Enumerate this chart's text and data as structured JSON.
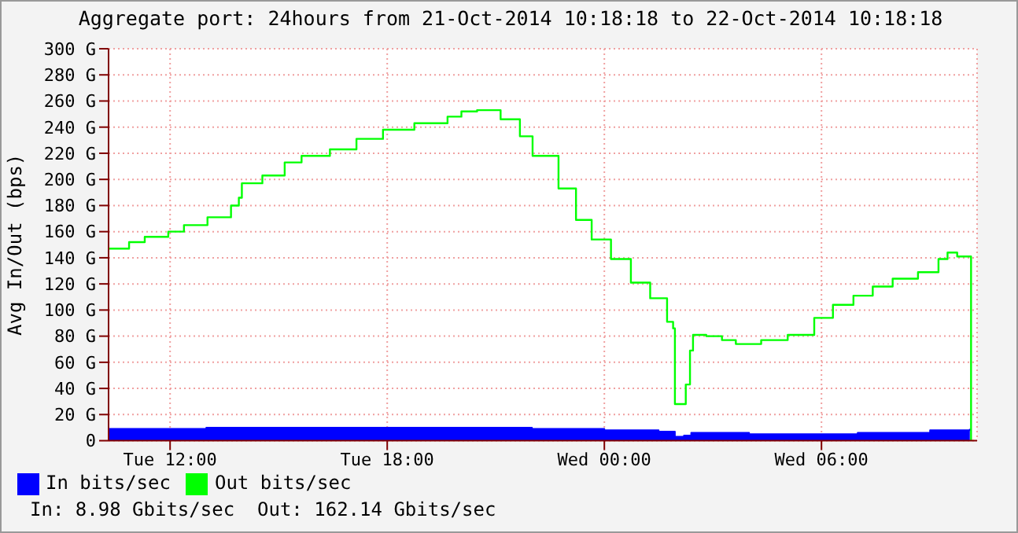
{
  "chart_data": {
    "type": "step",
    "title": "Aggregate port: 24hours from 21-Oct-2014 10:18:18 to 22-Oct-2014 10:18:18",
    "ylabel": "Avg In/Out (bps)",
    "xlim": [
      "2014-10-21T10:18",
      "2014-10-22T10:18"
    ],
    "xticks": [
      {
        "value": "2014-10-21T12:00",
        "label": "Tue 12:00"
      },
      {
        "value": "2014-10-21T18:00",
        "label": "Tue 18:00"
      },
      {
        "value": "2014-10-22T00:00",
        "label": "Wed 00:00"
      },
      {
        "value": "2014-10-22T06:00",
        "label": "Wed 06:00"
      }
    ],
    "ylim": [
      0,
      300
    ],
    "yticks": [
      {
        "value": 0,
        "label": "0"
      },
      {
        "value": 20,
        "label": "20 G"
      },
      {
        "value": 40,
        "label": "40 G"
      },
      {
        "value": 60,
        "label": "60 G"
      },
      {
        "value": 80,
        "label": "80 G"
      },
      {
        "value": 100,
        "label": "100 G"
      },
      {
        "value": 120,
        "label": "120 G"
      },
      {
        "value": 140,
        "label": "140 G"
      },
      {
        "value": 160,
        "label": "160 G"
      },
      {
        "value": 180,
        "label": "180 G"
      },
      {
        "value": 200,
        "label": "200 G"
      },
      {
        "value": 220,
        "label": "220 G"
      },
      {
        "value": 240,
        "label": "240 G"
      },
      {
        "value": 260,
        "label": "260 G"
      },
      {
        "value": 280,
        "label": "280 G"
      },
      {
        "value": 300,
        "label": "300 G"
      }
    ],
    "grid": true,
    "legend": "bottom left",
    "marker": "none",
    "annotations": [
      "In: 8.98 Gbits/sec  Out: 162.14 Gbits/sec"
    ],
    "series": [
      {
        "name": "In bits/sec",
        "type": "area",
        "color": "#0000ff",
        "x": [
          "2014-10-21T10:18",
          "2014-10-21T13:00",
          "2014-10-21T16:00",
          "2014-10-21T20:00",
          "2014-10-21T22:00",
          "2014-10-22T00:00",
          "2014-10-22T01:30",
          "2014-10-22T01:57",
          "2014-10-22T02:12",
          "2014-10-22T02:24",
          "2014-10-22T04:00",
          "2014-10-22T07:00",
          "2014-10-22T09:00",
          "2014-10-22T10:06"
        ],
        "values": [
          9,
          10,
          10,
          10,
          9,
          8,
          7,
          3,
          4,
          6,
          5,
          6,
          8,
          9
        ]
      },
      {
        "name": "Out bits/sec",
        "color": "#00ff00",
        "x": [
          "2014-10-21T10:18",
          "2014-10-21T10:52",
          "2014-10-21T11:18",
          "2014-10-21T11:57",
          "2014-10-21T12:23",
          "2014-10-21T13:02",
          "2014-10-21T13:41",
          "2014-10-21T13:54",
          "2014-10-21T13:59",
          "2014-10-21T14:04",
          "2014-10-21T14:33",
          "2014-10-21T15:10",
          "2014-10-21T15:38",
          "2014-10-21T16:25",
          "2014-10-21T17:09",
          "2014-10-21T17:53",
          "2014-10-21T18:45",
          "2014-10-21T19:40",
          "2014-10-21T20:03",
          "2014-10-21T20:29",
          "2014-10-21T21:08",
          "2014-10-21T21:40",
          "2014-10-21T22:01",
          "2014-10-21T22:44",
          "2014-10-21T23:13",
          "2014-10-21T23:39",
          "2014-10-22T00:11",
          "2014-10-22T00:44",
          "2014-10-22T01:16",
          "2014-10-22T01:44",
          "2014-10-22T01:54",
          "2014-10-22T01:57",
          "2014-10-22T02:10",
          "2014-10-22T02:15",
          "2014-10-22T02:22",
          "2014-10-22T02:27",
          "2014-10-22T02:49",
          "2014-10-22T03:15",
          "2014-10-22T03:38",
          "2014-10-22T04:20",
          "2014-10-22T05:04",
          "2014-10-22T05:48",
          "2014-10-22T06:19",
          "2014-10-22T06:53",
          "2014-10-22T07:25",
          "2014-10-22T07:58",
          "2014-10-22T08:40",
          "2014-10-22T09:14",
          "2014-10-22T09:29",
          "2014-10-22T09:45",
          "2014-10-22T10:06",
          "2014-10-22T10:08"
        ],
        "values": [
          147,
          152,
          156,
          160,
          165,
          171,
          180,
          186,
          197,
          197,
          203,
          213,
          218,
          223,
          231,
          238,
          243,
          248,
          252,
          253,
          246,
          233,
          218,
          193,
          169,
          154,
          139,
          121,
          109,
          91,
          86,
          28,
          28,
          43,
          69,
          81,
          80,
          77,
          74,
          77,
          81,
          94,
          104,
          111,
          118,
          124,
          129,
          139,
          144,
          141,
          141,
          0
        ]
      }
    ]
  }
}
